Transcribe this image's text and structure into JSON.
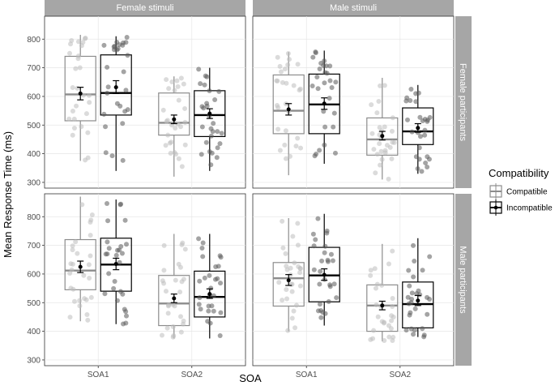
{
  "chart_data": {
    "type": "boxplot",
    "xlabel": "SOA",
    "ylabel": "Mean Response Time (ms)",
    "ylim": [
      280,
      880
    ],
    "yticks": [
      300,
      400,
      500,
      600,
      700,
      800
    ],
    "categories": [
      "SOA1",
      "SOA2"
    ],
    "legend": {
      "title": "Compatibility",
      "position": "right",
      "entries": [
        {
          "name": "Compatible",
          "color": "#8c8c8c"
        },
        {
          "name": "Incompatible",
          "color": "#000000"
        }
      ]
    },
    "facets": {
      "columns": [
        "Female stimuli",
        "Male stimuli"
      ],
      "rows": [
        "Female participants",
        "Male participants"
      ]
    },
    "colors": {
      "strip": "#a6a6a6",
      "compatible": "#8c8c8c",
      "incompatible": "#000000",
      "compatible_point": "#bdbdbd",
      "incompatible_point": "#595959"
    },
    "panels": [
      {
        "row": 0,
        "col": 0,
        "boxes": [
          {
            "soa": "SOA1",
            "group": "Compatible",
            "whisker_low": 375,
            "q1": 515,
            "median": 607,
            "q3": 740,
            "whisker_high": 815,
            "mean": 610,
            "ci": [
              588,
              632
            ]
          },
          {
            "soa": "SOA1",
            "group": "Incompatible",
            "whisker_low": 340,
            "q1": 535,
            "median": 612,
            "q3": 745,
            "whisker_high": 810,
            "mean": 632,
            "ci": [
              610,
              655
            ]
          },
          {
            "soa": "SOA2",
            "group": "Compatible",
            "whisker_low": 320,
            "q1": 465,
            "median": 508,
            "q3": 612,
            "whisker_high": 670,
            "mean": 520,
            "ci": [
              505,
              535
            ]
          },
          {
            "soa": "SOA2",
            "group": "Incompatible",
            "whisker_low": 340,
            "q1": 460,
            "median": 535,
            "q3": 620,
            "whisker_high": 700,
            "mean": 540,
            "ci": [
              523,
              557
            ]
          }
        ]
      },
      {
        "row": 0,
        "col": 1,
        "boxes": [
          {
            "soa": "SOA1",
            "group": "Compatible",
            "whisker_low": 325,
            "q1": 470,
            "median": 550,
            "q3": 675,
            "whisker_high": 755,
            "mean": 555,
            "ci": [
              535,
              575
            ]
          },
          {
            "soa": "SOA1",
            "group": "Incompatible",
            "whisker_low": 365,
            "q1": 470,
            "median": 572,
            "q3": 678,
            "whisker_high": 760,
            "mean": 575,
            "ci": [
              555,
              595
            ]
          },
          {
            "soa": "SOA2",
            "group": "Compatible",
            "whisker_low": 310,
            "q1": 395,
            "median": 450,
            "q3": 525,
            "whisker_high": 665,
            "mean": 462,
            "ci": [
              448,
              478
            ]
          },
          {
            "soa": "SOA2",
            "group": "Incompatible",
            "whisker_low": 330,
            "q1": 432,
            "median": 478,
            "q3": 560,
            "whisker_high": 640,
            "mean": 490,
            "ci": [
              475,
              505
            ]
          }
        ]
      },
      {
        "row": 1,
        "col": 0,
        "boxes": [
          {
            "soa": "SOA1",
            "group": "Compatible",
            "whisker_low": 435,
            "q1": 545,
            "median": 612,
            "q3": 720,
            "whisker_high": 870,
            "mean": 625,
            "ci": [
              605,
              645
            ]
          },
          {
            "soa": "SOA1",
            "group": "Incompatible",
            "whisker_low": 425,
            "q1": 540,
            "median": 633,
            "q3": 725,
            "whisker_high": 860,
            "mean": 635,
            "ci": [
              615,
              655
            ]
          },
          {
            "soa": "SOA2",
            "group": "Compatible",
            "whisker_low": 375,
            "q1": 420,
            "median": 497,
            "q3": 595,
            "whisker_high": 740,
            "mean": 515,
            "ci": [
              500,
              530
            ]
          },
          {
            "soa": "SOA2",
            "group": "Incompatible",
            "whisker_low": 375,
            "q1": 450,
            "median": 520,
            "q3": 610,
            "whisker_high": 740,
            "mean": 530,
            "ci": [
              515,
              548
            ]
          }
        ]
      },
      {
        "row": 1,
        "col": 1,
        "boxes": [
          {
            "soa": "SOA1",
            "group": "Compatible",
            "whisker_low": 400,
            "q1": 488,
            "median": 585,
            "q3": 640,
            "whisker_high": 795,
            "mean": 578,
            "ci": [
              560,
              598
            ]
          },
          {
            "soa": "SOA1",
            "group": "Incompatible",
            "whisker_low": 420,
            "q1": 503,
            "median": 595,
            "q3": 693,
            "whisker_high": 810,
            "mean": 597,
            "ci": [
              578,
              618
            ]
          },
          {
            "soa": "SOA2",
            "group": "Compatible",
            "whisker_low": 365,
            "q1": 400,
            "median": 490,
            "q3": 562,
            "whisker_high": 705,
            "mean": 490,
            "ci": [
              475,
              505
            ]
          },
          {
            "soa": "SOA2",
            "group": "Incompatible",
            "whisker_low": 380,
            "q1": 412,
            "median": 495,
            "q3": 572,
            "whisker_high": 725,
            "mean": 507,
            "ci": [
              490,
              525
            ]
          }
        ]
      }
    ]
  }
}
